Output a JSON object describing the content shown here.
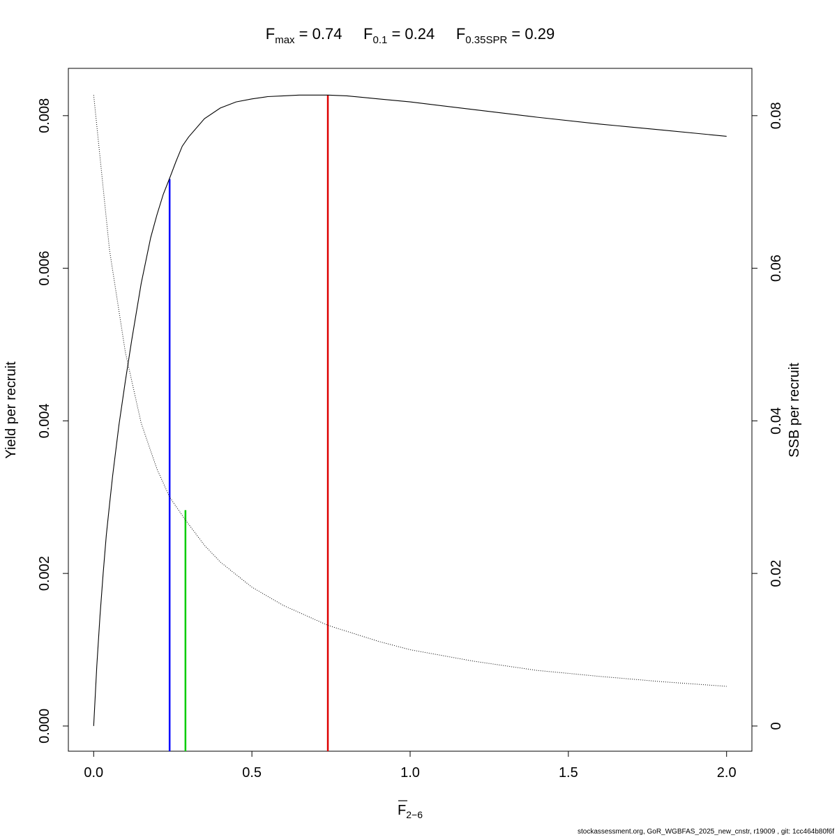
{
  "chart_data": {
    "type": "line",
    "title": {
      "fmax": {
        "base": "F",
        "sub": "max",
        "value": "0.74"
      },
      "f01": {
        "base": "F",
        "sub": "0.1",
        "value": "0.24"
      },
      "fspr": {
        "base": "F",
        "sub": "0.35SPR",
        "value": "0.29"
      }
    },
    "xlabel": {
      "base": "F",
      "sub": "2−6"
    },
    "ylabel_left": "Yield per recruit",
    "ylabel_right": "SSB per recruit",
    "xlim": [
      -0.08,
      2.08
    ],
    "ylim_left": [
      -0.00033,
      0.00862
    ],
    "ylim_right": [
      -0.0033,
      0.0862
    ],
    "x_ticks": [
      0,
      0.5,
      1,
      1.5,
      2
    ],
    "x_tick_labels": [
      "0.0",
      "0.5",
      "1.0",
      "1.5",
      "2.0"
    ],
    "y_left_ticks": [
      0,
      0.002,
      0.004,
      0.006,
      0.008
    ],
    "y_left_tick_labels": [
      "0.000",
      "0.002",
      "0.004",
      "0.006",
      "0.008"
    ],
    "y_right_ticks": [
      0,
      0.02,
      0.04,
      0.06,
      0.08
    ],
    "y_right_tick_labels": [
      "0",
      "0.02",
      "0.04",
      "0.06",
      "0.08"
    ],
    "series": [
      {
        "axis": "left",
        "style": "solid",
        "color": "#000000",
        "x": [
          0,
          0.01,
          0.02,
          0.03,
          0.04,
          0.05,
          0.06,
          0.08,
          0.1,
          0.12,
          0.15,
          0.18,
          0.2,
          0.22,
          0.24,
          0.26,
          0.28,
          0.3,
          0.35,
          0.4,
          0.45,
          0.5,
          0.55,
          0.6,
          0.65,
          0.7,
          0.74,
          0.8,
          0.9,
          1.0,
          1.2,
          1.4,
          1.6,
          1.8,
          2.0
        ],
        "y": [
          0,
          0.00079,
          0.00145,
          0.002,
          0.0025,
          0.0029,
          0.00328,
          0.00395,
          0.00452,
          0.00505,
          0.0058,
          0.0064,
          0.0067,
          0.00697,
          0.00718,
          0.0074,
          0.0076,
          0.00772,
          0.00796,
          0.0081,
          0.00818,
          0.00822,
          0.00825,
          0.00826,
          0.00827,
          0.00827,
          0.00827,
          0.00826,
          0.00822,
          0.00818,
          0.00808,
          0.00798,
          0.00789,
          0.00781,
          0.00773
        ]
      },
      {
        "axis": "right",
        "style": "dotted",
        "color": "#000000",
        "x": [
          0,
          0.05,
          0.1,
          0.15,
          0.2,
          0.24,
          0.29,
          0.35,
          0.4,
          0.5,
          0.6,
          0.74,
          0.9,
          1.0,
          1.2,
          1.4,
          1.5,
          1.6,
          1.8,
          2.0
        ],
        "y": [
          0.0827,
          0.0624,
          0.049,
          0.0397,
          0.0337,
          0.03,
          0.027,
          0.0237,
          0.0215,
          0.0182,
          0.0158,
          0.0132,
          0.0111,
          0.01,
          0.0085,
          0.0073,
          0.0069,
          0.0065,
          0.0058,
          0.0052
        ]
      }
    ],
    "reference_lines": [
      {
        "label": "F0.1",
        "x": 0.24,
        "y_top": 0.00717,
        "color": "#0000ff"
      },
      {
        "label": "F0.35SPR",
        "x": 0.29,
        "y_top": 0.00283,
        "color": "#00cc00"
      },
      {
        "label": "Fmax",
        "x": 0.74,
        "y_top": 0.00827,
        "color": "#dd0000"
      }
    ]
  },
  "footer": "stockassessment.org, GoR_WGBFAS_2025_new_cnstr, r19009 , git: 1cc464b80f6f"
}
